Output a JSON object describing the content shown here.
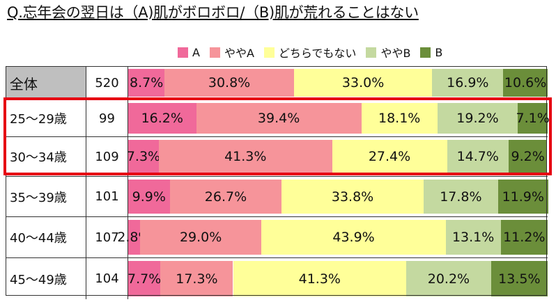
{
  "title": "Q.忘年会の翌日は（A)肌がボロボロ/（B)肌が荒れることはない",
  "chart_data": {
    "type": "bar",
    "orientation": "horizontal",
    "stacked": true,
    "categories": [
      "全体",
      "25～29歳",
      "30～34歳",
      "35～39歳",
      "40～44歳",
      "45～49歳"
    ],
    "n": [
      "520",
      "99",
      "109",
      "101",
      "107",
      "104"
    ],
    "series": [
      {
        "name": "A",
        "color": "#f0699a",
        "values": [
          8.7,
          16.2,
          7.3,
          9.9,
          2.8,
          7.7
        ]
      },
      {
        "name": "ややA",
        "color": "#f6949a",
        "values": [
          30.8,
          39.4,
          41.3,
          26.7,
          29.0,
          17.3
        ]
      },
      {
        "name": "どちらでもない",
        "color": "#ffff99",
        "values": [
          33.0,
          18.1,
          27.4,
          33.8,
          43.9,
          41.3
        ]
      },
      {
        "name": "ややB",
        "color": "#c4d9a0",
        "values": [
          16.9,
          19.2,
          14.7,
          17.8,
          13.1,
          20.2
        ]
      },
      {
        "name": "B",
        "color": "#6b8e3a",
        "values": [
          10.6,
          7.1,
          9.2,
          11.9,
          11.2,
          13.5
        ]
      }
    ],
    "value_format": "{v}%",
    "legend_position": "top",
    "highlight": {
      "rows": [
        "25～29歳",
        "30～34歳"
      ],
      "color": "#e60012"
    }
  }
}
